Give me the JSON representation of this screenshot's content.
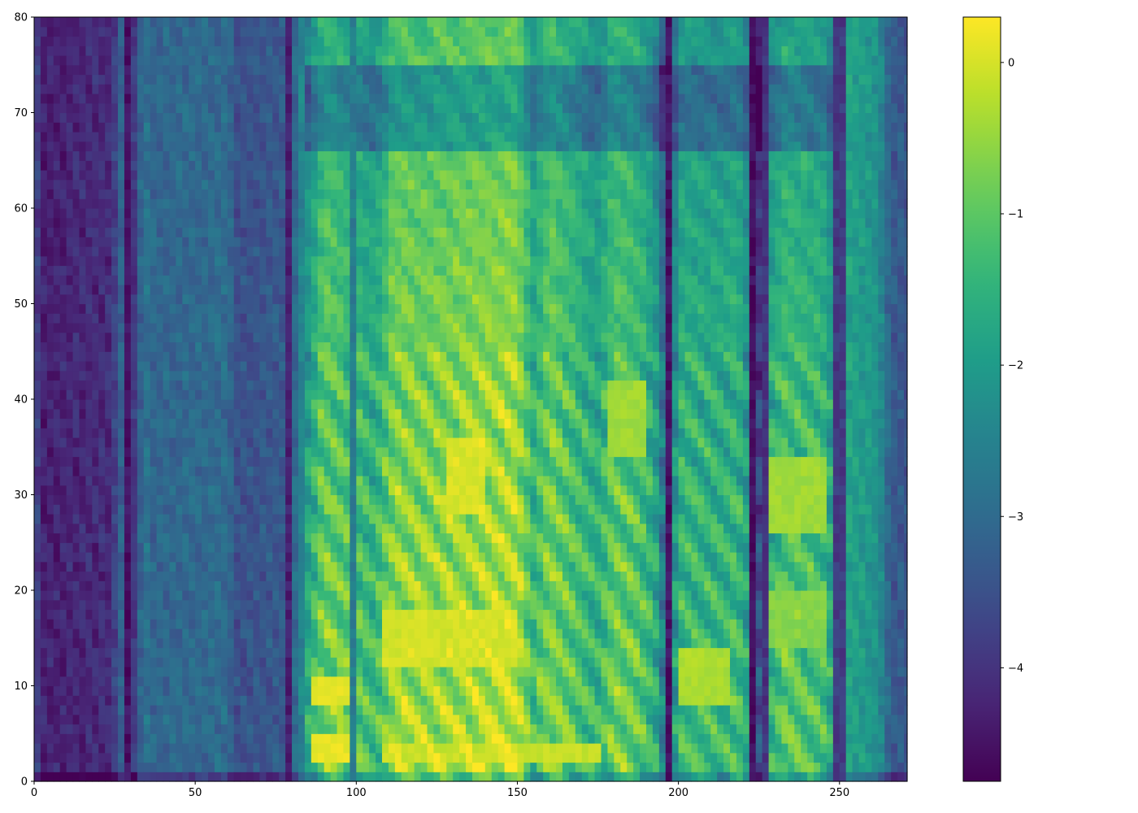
{
  "chart_data": {
    "type": "heatmap",
    "title": "",
    "xlabel": "",
    "ylabel": "",
    "xlim": [
      0,
      271
    ],
    "ylim": [
      0,
      80
    ],
    "x_ticks": [
      0,
      50,
      100,
      150,
      200,
      250
    ],
    "y_ticks": [
      0,
      10,
      20,
      30,
      40,
      50,
      60,
      70,
      80
    ],
    "colormap": "viridis",
    "colorbar": {
      "range": [
        -4.75,
        0.3
      ],
      "ticks": [
        0,
        -1,
        -2,
        -3,
        -4
      ],
      "tick_labels": [
        "0",
        "−1",
        "−2",
        "−3",
        "−4"
      ]
    },
    "grid": false,
    "legend": "none",
    "column_profile": [
      {
        "x": 0,
        "base": -3.6
      },
      {
        "x": 3,
        "base": -4.3
      },
      {
        "x": 24,
        "base": -4.1
      },
      {
        "x": 27,
        "base": -3.2
      },
      {
        "x": 31,
        "base": -3.9
      },
      {
        "x": 34,
        "base": -2.8
      },
      {
        "x": 37,
        "base": -3.1
      },
      {
        "x": 60,
        "base": -3.0
      },
      {
        "x": 63,
        "base": -3.5
      },
      {
        "x": 80,
        "base": -3.3
      },
      {
        "x": 84,
        "base": -2.2
      },
      {
        "x": 90,
        "base": -1.0
      },
      {
        "x": 100,
        "base": -1.4
      },
      {
        "x": 106,
        "base": -1.7
      },
      {
        "x": 112,
        "base": -0.7
      },
      {
        "x": 120,
        "base": -0.8
      },
      {
        "x": 140,
        "base": -0.6
      },
      {
        "x": 150,
        "base": -0.5
      },
      {
        "x": 155,
        "base": -1.6
      },
      {
        "x": 160,
        "base": -0.9
      },
      {
        "x": 175,
        "base": -1.8
      },
      {
        "x": 180,
        "base": -1.1
      },
      {
        "x": 188,
        "base": -1.3
      },
      {
        "x": 193,
        "base": -2.0
      },
      {
        "x": 197,
        "base": -3.6
      },
      {
        "x": 200,
        "base": -1.6
      },
      {
        "x": 215,
        "base": -1.7
      },
      {
        "x": 218,
        "base": -1.5
      },
      {
        "x": 222,
        "base": -2.2
      },
      {
        "x": 225,
        "base": -3.8
      },
      {
        "x": 228,
        "base": -1.9
      },
      {
        "x": 233,
        "base": -1.3
      },
      {
        "x": 246,
        "base": -1.6
      },
      {
        "x": 250,
        "base": -2.9
      },
      {
        "x": 252,
        "base": -1.8
      },
      {
        "x": 262,
        "base": -2.2
      },
      {
        "x": 266,
        "base": -3.3
      },
      {
        "x": 271,
        "base": -3.4
      }
    ],
    "dark_columns": [
      [
        28,
        30,
        -4.5
      ],
      [
        78,
        80,
        -4.3
      ],
      [
        98,
        100,
        -2.6
      ],
      [
        196,
        198,
        -4.5
      ],
      [
        222,
        224,
        -4.6
      ],
      [
        226,
        227,
        -4.0
      ],
      [
        249,
        251,
        -3.9
      ]
    ],
    "hot_regions": [
      {
        "x0": 86,
        "x1": 98,
        "y0": 2,
        "y1": 5,
        "value": 0.25
      },
      {
        "x0": 86,
        "x1": 98,
        "y0": 8,
        "y1": 11,
        "value": 0.2
      },
      {
        "x0": 108,
        "x1": 175,
        "y0": 2,
        "y1": 4,
        "value": 0.0
      },
      {
        "x0": 108,
        "x1": 150,
        "y0": 12,
        "y1": 18,
        "value": 0.1
      },
      {
        "x0": 128,
        "x1": 140,
        "y0": 28,
        "y1": 36,
        "value": 0.15
      },
      {
        "x0": 178,
        "x1": 190,
        "y0": 34,
        "y1": 42,
        "value": -0.3
      },
      {
        "x0": 200,
        "x1": 215,
        "y0": 8,
        "y1": 14,
        "value": -0.2
      },
      {
        "x0": 228,
        "x1": 245,
        "y0": 26,
        "y1": 34,
        "value": -0.3
      },
      {
        "x0": 228,
        "x1": 245,
        "y0": 14,
        "y1": 20,
        "value": -0.5
      }
    ]
  }
}
